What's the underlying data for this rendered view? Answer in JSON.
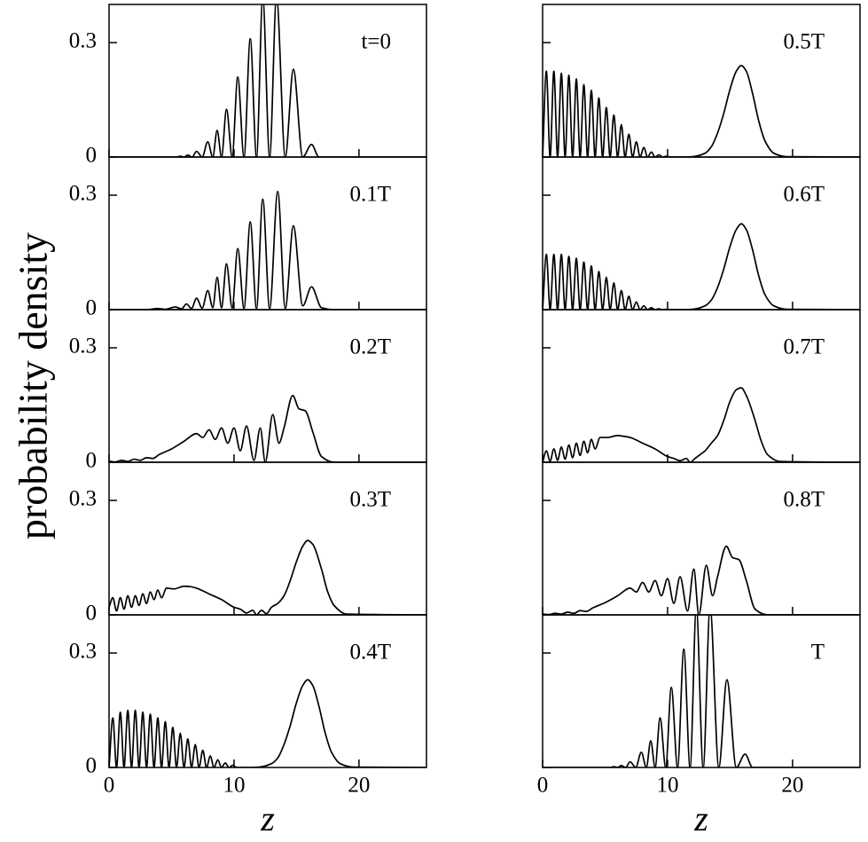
{
  "chart_data": [
    {
      "type": "line",
      "annotation": "t=0",
      "color": "#000000",
      "xlim": [
        0,
        25.4
      ],
      "ylim": [
        0,
        0.4
      ],
      "xticks": [
        0,
        10,
        20
      ],
      "yticks": [
        0,
        0.3
      ],
      "show_xtick_labels": false,
      "show_ytick_labels": true,
      "x": [
        0,
        5.0,
        5.4,
        5.7,
        6.0,
        6.3,
        6.65,
        7.0,
        7.45,
        7.9,
        8.3,
        8.65,
        9.0,
        9.4,
        9.85,
        10.3,
        10.8,
        11.3,
        11.8,
        12.3,
        12.85,
        13.4,
        14.1,
        14.75,
        15.5,
        16.2,
        16.8,
        25.4
      ],
      "values": [
        0,
        0,
        0,
        0.002,
        0,
        0.005,
        0,
        0.015,
        0,
        0.04,
        0,
        0.07,
        0,
        0.125,
        0,
        0.21,
        0,
        0.31,
        0,
        0.42,
        0,
        0.42,
        0,
        0.23,
        0,
        0.033,
        0,
        0
      ]
    },
    {
      "type": "line",
      "annotation": "0.1T",
      "color": "#000000",
      "xlim": [
        0,
        25.4
      ],
      "ylim": [
        0,
        0.4
      ],
      "xticks": [
        0,
        10,
        20
      ],
      "yticks": [
        0,
        0.3
      ],
      "show_xtick_labels": false,
      "show_ytick_labels": true,
      "x": [
        0,
        3,
        3.9,
        4.5,
        5.3,
        5.8,
        6.2,
        6.6,
        7.0,
        7.45,
        7.9,
        8.3,
        8.65,
        9.0,
        9.4,
        9.85,
        10.3,
        10.8,
        11.3,
        11.8,
        12.3,
        12.85,
        13.5,
        14.1,
        14.75,
        15.5,
        16.2,
        17.0,
        18,
        25.4
      ],
      "values": [
        0,
        0,
        0.003,
        0.001,
        0.007,
        0.002,
        0.015,
        0.003,
        0.03,
        0.004,
        0.05,
        0.005,
        0.085,
        0.005,
        0.12,
        0.004,
        0.16,
        0.003,
        0.23,
        0.002,
        0.29,
        0.002,
        0.31,
        0.003,
        0.22,
        0.01,
        0.06,
        0.005,
        0,
        0
      ]
    },
    {
      "type": "line",
      "annotation": "0.2T",
      "ylabel": "probability density",
      "color": "#000000",
      "xlim": [
        0,
        25.4
      ],
      "ylim": [
        0,
        0.4
      ],
      "xticks": [
        0,
        10,
        20
      ],
      "yticks": [
        0,
        0.3
      ],
      "show_xtick_labels": false,
      "show_ytick_labels": true,
      "x": [
        0,
        0.5,
        1,
        1.5,
        2,
        2.5,
        3,
        3.5,
        4,
        5,
        6,
        7,
        7.5,
        8,
        8.5,
        9,
        9.5,
        10,
        10.5,
        11,
        11.6,
        12.1,
        12.5,
        13.1,
        13.6,
        14.0,
        14.7,
        15.2,
        15.7,
        16.3,
        17,
        18,
        25.4
      ],
      "values": [
        0.003,
        0.001,
        0.005,
        0.002,
        0.008,
        0.005,
        0.012,
        0.01,
        0.02,
        0.035,
        0.055,
        0.075,
        0.065,
        0.085,
        0.06,
        0.09,
        0.05,
        0.09,
        0.03,
        0.095,
        0.005,
        0.09,
        0.0,
        0.125,
        0.05,
        0.09,
        0.175,
        0.14,
        0.135,
        0.08,
        0.015,
        0,
        0
      ]
    },
    {
      "type": "line",
      "annotation": "0.3T",
      "color": "#000000",
      "xlim": [
        0,
        25.4
      ],
      "ylim": [
        0,
        0.4
      ],
      "xticks": [
        0,
        10,
        20
      ],
      "yticks": [
        0,
        0.3
      ],
      "show_xtick_labels": false,
      "show_ytick_labels": true,
      "x": [
        0,
        0.3,
        0.6,
        0.9,
        1.2,
        1.5,
        1.8,
        2.1,
        2.4,
        2.7,
        3.0,
        3.3,
        3.6,
        3.9,
        4.2,
        4.6,
        5.2,
        6,
        6.5,
        7,
        8,
        9,
        10,
        10.5,
        11,
        11.5,
        11.8,
        12.2,
        12.6,
        13,
        13.5,
        14,
        14.5,
        15,
        15.5,
        15.9,
        16.3,
        17,
        17.5,
        18,
        19,
        25.4
      ],
      "values": [
        0.02,
        0.045,
        0.01,
        0.045,
        0.015,
        0.05,
        0.02,
        0.05,
        0.025,
        0.055,
        0.03,
        0.06,
        0.04,
        0.065,
        0.045,
        0.07,
        0.068,
        0.075,
        0.074,
        0.07,
        0.055,
        0.04,
        0.02,
        0.015,
        0.005,
        0.012,
        0.0,
        0.012,
        0.003,
        0.02,
        0.03,
        0.05,
        0.09,
        0.14,
        0.18,
        0.195,
        0.185,
        0.12,
        0.06,
        0.025,
        0.002,
        0
      ]
    },
    {
      "type": "line",
      "annotation": "0.4T",
      "xlabel": "z",
      "color": "#000000",
      "xlim": [
        0,
        25.4
      ],
      "ylim": [
        0,
        0.4
      ],
      "xticks": [
        0,
        10,
        20
      ],
      "yticks": [
        0,
        0.3
      ],
      "show_xtick_labels": true,
      "show_ytick_labels": true,
      "x": [
        0,
        0.3,
        0.6,
        0.9,
        1.2,
        1.5,
        1.8,
        2.1,
        2.4,
        2.7,
        3.0,
        3.3,
        3.6,
        3.9,
        4.2,
        4.5,
        4.8,
        5.1,
        5.4,
        5.7,
        6.0,
        6.3,
        6.6,
        6.9,
        7.2,
        7.5,
        7.8,
        8.1,
        8.4,
        8.7,
        9.0,
        9.3,
        9.6,
        9.9,
        10.2,
        11,
        12,
        13,
        13.5,
        14,
        14.5,
        15,
        15.5,
        15.9,
        16.3,
        16.8,
        17.3,
        17.8,
        18.5,
        19.5,
        25.4
      ],
      "values": [
        0,
        0.13,
        0,
        0.145,
        0,
        0.15,
        0,
        0.15,
        0,
        0.145,
        0,
        0.14,
        0,
        0.13,
        0,
        0.12,
        0,
        0.105,
        0,
        0.09,
        0,
        0.075,
        0,
        0.06,
        0,
        0.045,
        0,
        0.03,
        0,
        0.02,
        0,
        0.012,
        0,
        0.006,
        0,
        0,
        0.001,
        0.01,
        0.025,
        0.06,
        0.11,
        0.17,
        0.215,
        0.23,
        0.215,
        0.16,
        0.09,
        0.04,
        0.01,
        0.001,
        0
      ]
    },
    {
      "type": "line",
      "annotation": "0.5T",
      "color": "#000000",
      "xlim": [
        0,
        25.4
      ],
      "ylim": [
        0,
        0.4
      ],
      "xticks": [
        0,
        10,
        20
      ],
      "yticks": [
        0,
        0.3
      ],
      "show_xtick_labels": false,
      "show_ytick_labels": false,
      "x": [
        0,
        0.3,
        0.6,
        0.9,
        1.2,
        1.5,
        1.8,
        2.1,
        2.4,
        2.7,
        3.0,
        3.3,
        3.6,
        3.9,
        4.2,
        4.5,
        4.8,
        5.1,
        5.4,
        5.7,
        6.0,
        6.3,
        6.6,
        6.9,
        7.2,
        7.5,
        7.8,
        8.1,
        8.4,
        8.7,
        9.0,
        9.3,
        9.6,
        9.9,
        10.2,
        11,
        12,
        13,
        13.5,
        14,
        14.5,
        15,
        15.5,
        15.9,
        16.3,
        16.8,
        17.3,
        17.8,
        18.5,
        19.5,
        25.4
      ],
      "values": [
        0,
        0.225,
        0,
        0.225,
        0,
        0.22,
        0,
        0.215,
        0,
        0.205,
        0,
        0.19,
        0,
        0.175,
        0,
        0.155,
        0,
        0.13,
        0,
        0.11,
        0,
        0.085,
        0,
        0.06,
        0,
        0.04,
        0,
        0.025,
        0,
        0.013,
        0,
        0.006,
        0,
        0.002,
        0,
        0,
        0.001,
        0.01,
        0.027,
        0.063,
        0.115,
        0.178,
        0.225,
        0.24,
        0.225,
        0.167,
        0.094,
        0.042,
        0.01,
        0.001,
        0
      ]
    },
    {
      "type": "line",
      "annotation": "0.6T",
      "color": "#000000",
      "xlim": [
        0,
        25.4
      ],
      "ylim": [
        0,
        0.4
      ],
      "xticks": [
        0,
        10,
        20
      ],
      "yticks": [
        0,
        0.3
      ],
      "show_xtick_labels": false,
      "show_ytick_labels": false,
      "x": [
        0,
        0.3,
        0.6,
        0.9,
        1.2,
        1.5,
        1.8,
        2.1,
        2.4,
        2.7,
        3.0,
        3.3,
        3.6,
        3.9,
        4.2,
        4.5,
        4.8,
        5.1,
        5.4,
        5.7,
        6.0,
        6.3,
        6.6,
        6.9,
        7.2,
        7.5,
        7.8,
        8.1,
        8.4,
        8.7,
        9.0,
        9.3,
        9.6,
        9.9,
        10.2,
        11,
        12,
        13,
        13.5,
        14,
        14.5,
        15,
        15.5,
        15.9,
        16.3,
        16.8,
        17.3,
        17.8,
        18.5,
        19.5,
        25.4
      ],
      "values": [
        0,
        0.145,
        0,
        0.145,
        0,
        0.145,
        0,
        0.14,
        0,
        0.135,
        0,
        0.125,
        0,
        0.115,
        0,
        0.1,
        0,
        0.085,
        0,
        0.07,
        0,
        0.05,
        0,
        0.035,
        0,
        0.02,
        0,
        0.01,
        0,
        0.005,
        0,
        0.002,
        0,
        0.001,
        0,
        0,
        0.001,
        0.01,
        0.025,
        0.058,
        0.107,
        0.166,
        0.21,
        0.225,
        0.21,
        0.157,
        0.088,
        0.039,
        0.01,
        0.001,
        0
      ]
    },
    {
      "type": "line",
      "annotation": "0.7T",
      "color": "#000000",
      "xlim": [
        0,
        25.4
      ],
      "ylim": [
        0,
        0.4
      ],
      "xticks": [
        0,
        10,
        20
      ],
      "yticks": [
        0,
        0.3
      ],
      "show_xtick_labels": false,
      "show_ytick_labels": false,
      "x": [
        0,
        0.3,
        0.6,
        0.9,
        1.2,
        1.5,
        1.8,
        2.1,
        2.4,
        2.7,
        3.0,
        3.3,
        3.6,
        3.9,
        4.2,
        4.6,
        5.2,
        6,
        6.5,
        7,
        8,
        9,
        10,
        10.5,
        11,
        11.5,
        11.8,
        12.2,
        12.6,
        13,
        13.5,
        14,
        14.5,
        15,
        15.5,
        15.9,
        16.3,
        17,
        17.5,
        18,
        19,
        25.4
      ],
      "values": [
        0,
        0.03,
        0.003,
        0.035,
        0.005,
        0.04,
        0.008,
        0.045,
        0.012,
        0.05,
        0.018,
        0.055,
        0.025,
        0.06,
        0.035,
        0.065,
        0.065,
        0.07,
        0.068,
        0.065,
        0.05,
        0.035,
        0.015,
        0.01,
        0.004,
        0.01,
        0.0,
        0.01,
        0.02,
        0.03,
        0.05,
        0.07,
        0.11,
        0.16,
        0.19,
        0.195,
        0.175,
        0.11,
        0.055,
        0.02,
        0.002,
        0
      ]
    },
    {
      "type": "line",
      "annotation": "0.8T",
      "color": "#000000",
      "xlim": [
        0,
        25.4
      ],
      "ylim": [
        0,
        0.4
      ],
      "xticks": [
        0,
        10,
        20
      ],
      "yticks": [
        0,
        0.3
      ],
      "show_xtick_labels": false,
      "show_ytick_labels": false,
      "x": [
        0,
        0.5,
        1,
        1.5,
        2,
        2.5,
        3,
        3.5,
        4,
        5,
        6,
        7,
        7.5,
        8,
        8.5,
        9,
        9.5,
        10,
        10.5,
        11,
        11.6,
        12.1,
        12.5,
        13.1,
        13.6,
        14.0,
        14.7,
        15.2,
        15.7,
        16.3,
        17,
        18,
        25.4
      ],
      "values": [
        0.002,
        0.001,
        0.004,
        0.002,
        0.007,
        0.004,
        0.011,
        0.009,
        0.018,
        0.032,
        0.05,
        0.07,
        0.06,
        0.085,
        0.06,
        0.09,
        0.05,
        0.095,
        0.03,
        0.1,
        0.01,
        0.12,
        0.0,
        0.13,
        0.05,
        0.1,
        0.18,
        0.15,
        0.145,
        0.09,
        0.015,
        0,
        0
      ]
    },
    {
      "type": "line",
      "annotation": "T",
      "xlabel": "z",
      "color": "#000000",
      "xlim": [
        0,
        25.4
      ],
      "ylim": [
        0,
        0.4
      ],
      "xticks": [
        0,
        10,
        20
      ],
      "yticks": [
        0,
        0.3
      ],
      "show_xtick_labels": true,
      "show_ytick_labels": false,
      "x": [
        0,
        5.0,
        5.4,
        5.7,
        6.0,
        6.3,
        6.65,
        7.0,
        7.45,
        7.9,
        8.3,
        8.65,
        9.0,
        9.4,
        9.85,
        10.3,
        10.8,
        11.3,
        11.8,
        12.3,
        12.85,
        13.4,
        14.1,
        14.75,
        15.5,
        16.2,
        16.8,
        25.4
      ],
      "values": [
        0,
        0,
        0,
        0.002,
        0,
        0.005,
        0,
        0.015,
        0,
        0.04,
        0,
        0.07,
        0,
        0.13,
        0,
        0.21,
        0,
        0.31,
        0,
        0.42,
        0,
        0.42,
        0,
        0.23,
        0,
        0.035,
        0,
        0
      ]
    }
  ]
}
